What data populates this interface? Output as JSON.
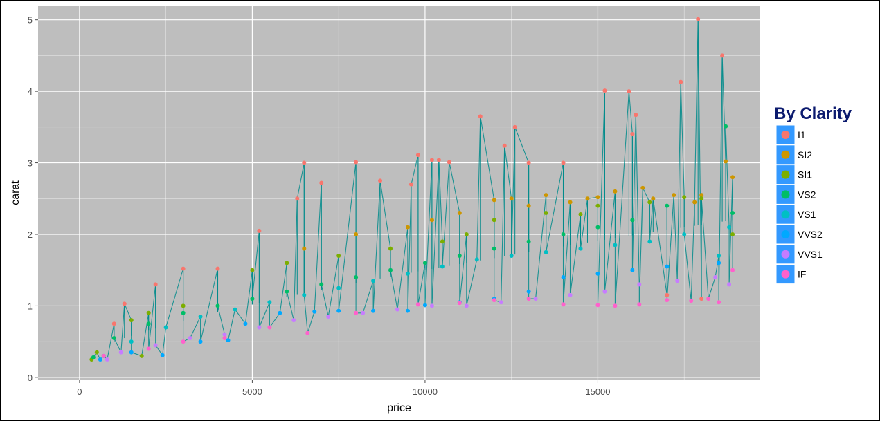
{
  "chart_data": {
    "type": "scatter",
    "title": "",
    "xlabel": "price",
    "ylabel": "carat",
    "xlim": [
      -1200,
      19700
    ],
    "ylim": [
      -0.04,
      5.2
    ],
    "x_ticks": [
      0,
      5000,
      10000,
      15000
    ],
    "x_tick_labels": [
      "0",
      "5000",
      "10000",
      "15000"
    ],
    "y_ticks": [
      0,
      1,
      2,
      3,
      4,
      5
    ],
    "y_tick_labels": [
      "0",
      "1",
      "2",
      "3",
      "4",
      "5"
    ],
    "grid": true,
    "background": "#bebebe",
    "grid_color": "#ffffff",
    "line_color": "#008b8b",
    "legend": {
      "title": "By Clarity",
      "placement": "right",
      "box_color": "#3399ff",
      "items": [
        {
          "label": "I1",
          "color": "#f8766d"
        },
        {
          "label": "SI2",
          "color": "#cd9600"
        },
        {
          "label": "SI1",
          "color": "#7cae00"
        },
        {
          "label": "VS2",
          "color": "#00be67"
        },
        {
          "label": "VS1",
          "color": "#00bfc4"
        },
        {
          "label": "VVS2",
          "color": "#00a9ff"
        },
        {
          "label": "VVS1",
          "color": "#c77cff"
        },
        {
          "label": "IF",
          "color": "#ff61cc"
        }
      ]
    },
    "series": [
      {
        "name": "I1",
        "values": [
          [
            6500,
            3.0
          ],
          [
            8000,
            3.01
          ],
          [
            9800,
            3.11
          ],
          [
            10400,
            3.04
          ],
          [
            11600,
            3.65
          ],
          [
            12300,
            3.24
          ],
          [
            12600,
            3.5
          ],
          [
            15200,
            4.01
          ],
          [
            15900,
            4.0
          ],
          [
            16100,
            3.67
          ],
          [
            17400,
            4.13
          ],
          [
            17900,
            5.01
          ],
          [
            18600,
            4.5
          ],
          [
            16000,
            3.4
          ],
          [
            13000,
            3.0
          ],
          [
            6300,
            2.5
          ],
          [
            7000,
            2.72
          ],
          [
            8700,
            2.75
          ],
          [
            9600,
            2.7
          ],
          [
            10200,
            3.04
          ],
          [
            10700,
            3.01
          ],
          [
            5200,
            2.05
          ],
          [
            4000,
            1.52
          ],
          [
            3000,
            1.52
          ],
          [
            2200,
            1.3
          ],
          [
            1300,
            1.03
          ],
          [
            1000,
            0.75
          ],
          [
            14000,
            3.0
          ],
          [
            18000,
            1.1
          ],
          [
            17000,
            1.15
          ]
        ]
      },
      {
        "name": "SI2",
        "values": [
          [
            12500,
            2.5
          ],
          [
            13500,
            2.55
          ],
          [
            14700,
            2.5
          ],
          [
            15500,
            2.6
          ],
          [
            16300,
            2.65
          ],
          [
            17200,
            2.55
          ],
          [
            18000,
            2.55
          ],
          [
            18900,
            2.8
          ],
          [
            18700,
            3.02
          ],
          [
            11000,
            2.3
          ],
          [
            9500,
            2.1
          ],
          [
            8000,
            2.0
          ],
          [
            6500,
            1.8
          ],
          [
            15000,
            2.52
          ],
          [
            16600,
            2.5
          ],
          [
            17800,
            2.45
          ],
          [
            13000,
            2.4
          ],
          [
            14200,
            2.45
          ],
          [
            12000,
            2.48
          ],
          [
            10200,
            2.2
          ]
        ]
      },
      {
        "name": "SI1",
        "values": [
          [
            5000,
            1.5
          ],
          [
            6000,
            1.6
          ],
          [
            7500,
            1.7
          ],
          [
            9000,
            1.8
          ],
          [
            10500,
            1.9
          ],
          [
            12000,
            2.2
          ],
          [
            13500,
            2.3
          ],
          [
            15000,
            2.4
          ],
          [
            16500,
            2.45
          ],
          [
            18000,
            2.5
          ],
          [
            18900,
            2.0
          ],
          [
            17500,
            2.52
          ],
          [
            14500,
            2.28
          ],
          [
            2000,
            0.9
          ],
          [
            3000,
            1.0
          ],
          [
            1500,
            0.8
          ],
          [
            500,
            0.35
          ],
          [
            350,
            0.25
          ],
          [
            1800,
            0.3
          ],
          [
            11200,
            2.0
          ]
        ]
      },
      {
        "name": "VS2",
        "values": [
          [
            18700,
            3.51
          ],
          [
            17000,
            2.4
          ],
          [
            16000,
            2.2
          ],
          [
            15000,
            2.1
          ],
          [
            14000,
            2.0
          ],
          [
            13000,
            1.9
          ],
          [
            12000,
            1.8
          ],
          [
            11000,
            1.7
          ],
          [
            10000,
            1.6
          ],
          [
            9000,
            1.5
          ],
          [
            8000,
            1.4
          ],
          [
            7000,
            1.3
          ],
          [
            6000,
            1.2
          ],
          [
            5000,
            1.1
          ],
          [
            4000,
            1.0
          ],
          [
            3000,
            0.9
          ],
          [
            2000,
            0.75
          ],
          [
            1000,
            0.55
          ],
          [
            400,
            0.28
          ],
          [
            18900,
            2.3
          ]
        ]
      },
      {
        "name": "VS1",
        "values": [
          [
            18800,
            2.1
          ],
          [
            17500,
            2.0
          ],
          [
            16500,
            1.9
          ],
          [
            15500,
            1.85
          ],
          [
            14500,
            1.8
          ],
          [
            13500,
            1.75
          ],
          [
            12500,
            1.7
          ],
          [
            11500,
            1.65
          ],
          [
            10500,
            1.55
          ],
          [
            9500,
            1.45
          ],
          [
            8500,
            1.35
          ],
          [
            7500,
            1.25
          ],
          [
            6500,
            1.15
          ],
          [
            5500,
            1.05
          ],
          [
            4500,
            0.95
          ],
          [
            3500,
            0.85
          ],
          [
            2500,
            0.7
          ],
          [
            1500,
            0.5
          ],
          [
            700,
            0.3
          ],
          [
            18500,
            1.7
          ]
        ]
      },
      {
        "name": "VVS2",
        "values": [
          [
            18500,
            1.6
          ],
          [
            17000,
            1.55
          ],
          [
            16000,
            1.5
          ],
          [
            15000,
            1.45
          ],
          [
            14000,
            1.4
          ],
          [
            13000,
            1.2
          ],
          [
            12000,
            1.1
          ],
          [
            11000,
            1.05
          ],
          [
            10000,
            1.01
          ],
          [
            9500,
            0.93
          ],
          [
            8500,
            0.93
          ],
          [
            7500,
            0.93
          ],
          [
            6800,
            0.92
          ],
          [
            5800,
            0.9
          ],
          [
            4800,
            0.75
          ],
          [
            4300,
            0.52
          ],
          [
            3500,
            0.5
          ],
          [
            2400,
            0.31
          ],
          [
            1500,
            0.35
          ],
          [
            600,
            0.25
          ]
        ]
      },
      {
        "name": "VVS1",
        "values": [
          [
            18400,
            1.4
          ],
          [
            17300,
            1.35
          ],
          [
            16200,
            1.3
          ],
          [
            15200,
            1.2
          ],
          [
            14200,
            1.15
          ],
          [
            13200,
            1.1
          ],
          [
            12200,
            1.05
          ],
          [
            11200,
            1.0
          ],
          [
            10200,
            1.0
          ],
          [
            9200,
            0.95
          ],
          [
            8200,
            0.9
          ],
          [
            7200,
            0.85
          ],
          [
            6200,
            0.8
          ],
          [
            5200,
            0.7
          ],
          [
            4200,
            0.6
          ],
          [
            3200,
            0.55
          ],
          [
            2200,
            0.45
          ],
          [
            1200,
            0.35
          ],
          [
            800,
            0.25
          ],
          [
            18800,
            1.3
          ]
        ]
      },
      {
        "name": "IF",
        "values": [
          [
            18900,
            1.5
          ],
          [
            18500,
            1.05
          ],
          [
            18200,
            1.1
          ],
          [
            17700,
            1.07
          ],
          [
            17000,
            1.08
          ],
          [
            16200,
            1.02
          ],
          [
            15500,
            1.0
          ],
          [
            15000,
            1.01
          ],
          [
            14000,
            1.02
          ],
          [
            13000,
            1.1
          ],
          [
            12000,
            1.08
          ],
          [
            11000,
            1.04
          ],
          [
            9800,
            1.02
          ],
          [
            8000,
            0.9
          ],
          [
            6600,
            0.62
          ],
          [
            5500,
            0.7
          ],
          [
            4200,
            0.55
          ],
          [
            3000,
            0.5
          ],
          [
            2000,
            0.4
          ],
          [
            700,
            0.3
          ]
        ]
      }
    ]
  }
}
